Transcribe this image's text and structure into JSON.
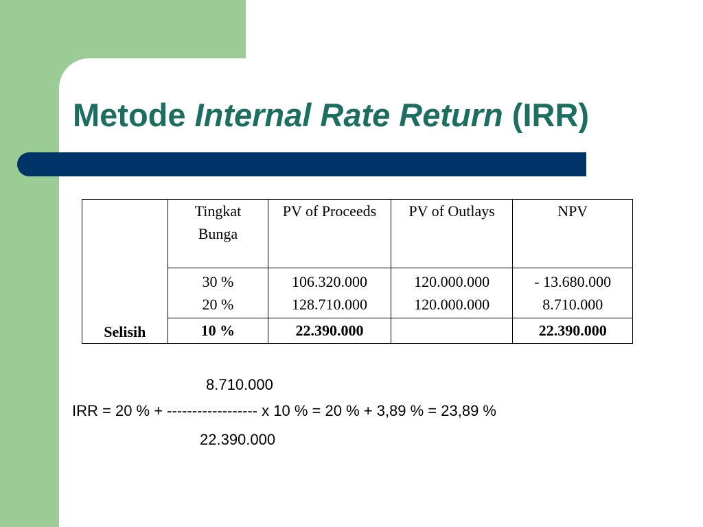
{
  "slide": {
    "title_plain": "Metode ",
    "title_italic": "Internal Rate Return",
    "title_suffix": " (IRR)"
  },
  "table": {
    "row_label": "Selisih",
    "headers": [
      "Tingkat",
      "Bunga",
      "PV of Proceeds",
      "PV of Outlays",
      "NPV"
    ],
    "rows": [
      {
        "rate": "30 %",
        "pv_proceeds": "106.320.000",
        "pv_outlays": "120.000.000",
        "npv": "- 13.680.000"
      },
      {
        "rate": "20 %",
        "pv_proceeds": "128.710.000",
        "pv_outlays": "120.000.000",
        "npv": "8.710.000"
      }
    ],
    "difference": {
      "rate": "10 %",
      "pv_proceeds": "22.390.000",
      "pv_outlays": "",
      "npv": "22.390.000"
    }
  },
  "formula": {
    "numerator": "8.710.000",
    "expression": "IRR = 20 % + ------------------ x 10 % = 20 % + 3,89 % = 23,89 %",
    "denominator": "22.390.000"
  }
}
